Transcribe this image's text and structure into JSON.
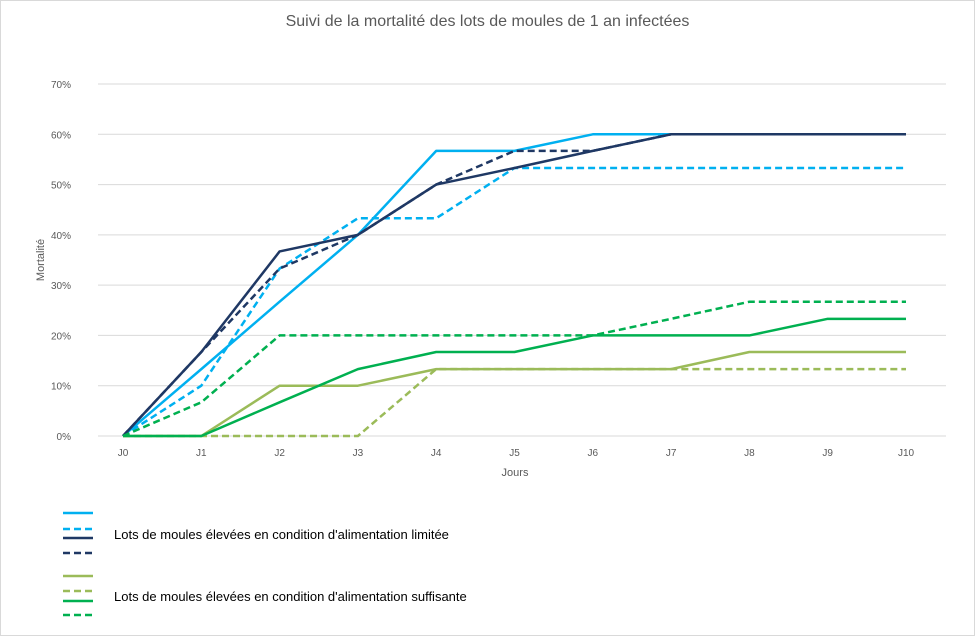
{
  "chart_data": {
    "type": "line",
    "title": "Suivi de la mortalité des lots de moules de 1 an infectées",
    "xlabel": "Jours",
    "ylabel": "Mortalité",
    "categories": [
      "J0",
      "J1",
      "J2",
      "J3",
      "J4",
      "J5",
      "J6",
      "J7",
      "J8",
      "J9",
      "J10"
    ],
    "yticks": [
      "0%",
      "10%",
      "20%",
      "30%",
      "40%",
      "50%",
      "60%",
      "70%"
    ],
    "ylim": [
      0,
      70
    ],
    "grid": true,
    "legend_position": "bottom-left",
    "legend_groups": [
      {
        "label": "Lots de moules élevées en condition d'alimentation limitée",
        "series_indices": [
          0,
          1,
          2,
          3
        ]
      },
      {
        "label": "Lots de moules élevées en condition d'alimentation suffisante",
        "series_indices": [
          4,
          5,
          6,
          7
        ]
      }
    ],
    "series": [
      {
        "color": "#00b0f0",
        "dash": false,
        "values": [
          0,
          13.3,
          26.7,
          40,
          56.7,
          56.7,
          60,
          60,
          60,
          60,
          60
        ]
      },
      {
        "color": "#00b0f0",
        "dash": true,
        "values": [
          0,
          10,
          33.3,
          43.3,
          43.3,
          53.3,
          53.3,
          53.3,
          53.3,
          53.3,
          53.3
        ]
      },
      {
        "color": "#1f3864",
        "dash": false,
        "values": [
          0,
          16.7,
          36.7,
          40,
          50,
          53.3,
          56.7,
          60,
          60,
          60,
          60
        ]
      },
      {
        "color": "#1f3864",
        "dash": true,
        "values": [
          0,
          16.7,
          33.3,
          40,
          50,
          56.7,
          56.7,
          60,
          60,
          60,
          60
        ]
      },
      {
        "color": "#9bbb59",
        "dash": false,
        "values": [
          0,
          0,
          10,
          10,
          13.3,
          13.3,
          13.3,
          13.3,
          16.7,
          16.7,
          16.7
        ]
      },
      {
        "color": "#9bbb59",
        "dash": true,
        "values": [
          0,
          0,
          0,
          0,
          13.3,
          13.3,
          13.3,
          13.3,
          13.3,
          13.3,
          13.3
        ]
      },
      {
        "color": "#00b050",
        "dash": false,
        "values": [
          0,
          0,
          6.7,
          13.3,
          16.7,
          16.7,
          20,
          20,
          20,
          23.3,
          23.3
        ]
      },
      {
        "color": "#00b050",
        "dash": true,
        "values": [
          0,
          6.7,
          20,
          20,
          20,
          20,
          20,
          23.3,
          26.7,
          26.7,
          26.7
        ]
      }
    ]
  }
}
